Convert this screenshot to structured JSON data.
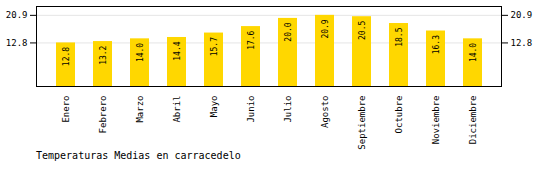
{
  "chart_data": {
    "type": "bar",
    "title": "Temperaturas Medias en carracedelo",
    "categories": [
      "Enero",
      "Febrero",
      "Marzo",
      "Abril",
      "Mayo",
      "Junio",
      "Julio",
      "Agosto",
      "Septiembre",
      "Octubre",
      "Noviembre",
      "Diciembre"
    ],
    "values": [
      12.8,
      13.2,
      14.0,
      14.4,
      15.7,
      17.6,
      20.0,
      20.9,
      20.5,
      18.5,
      16.3,
      14.0
    ],
    "value_labels": [
      "12.8",
      "13.2",
      "14.0",
      "14.4",
      "15.7",
      "17.6",
      "20.0",
      "20.9",
      "20.5",
      "18.5",
      "16.3",
      "14.0"
    ],
    "color": "#FFD700",
    "ylim": [
      0,
      23.5
    ],
    "yticks": [
      12.8,
      20.9
    ],
    "grid": true,
    "data_labels": true
  }
}
